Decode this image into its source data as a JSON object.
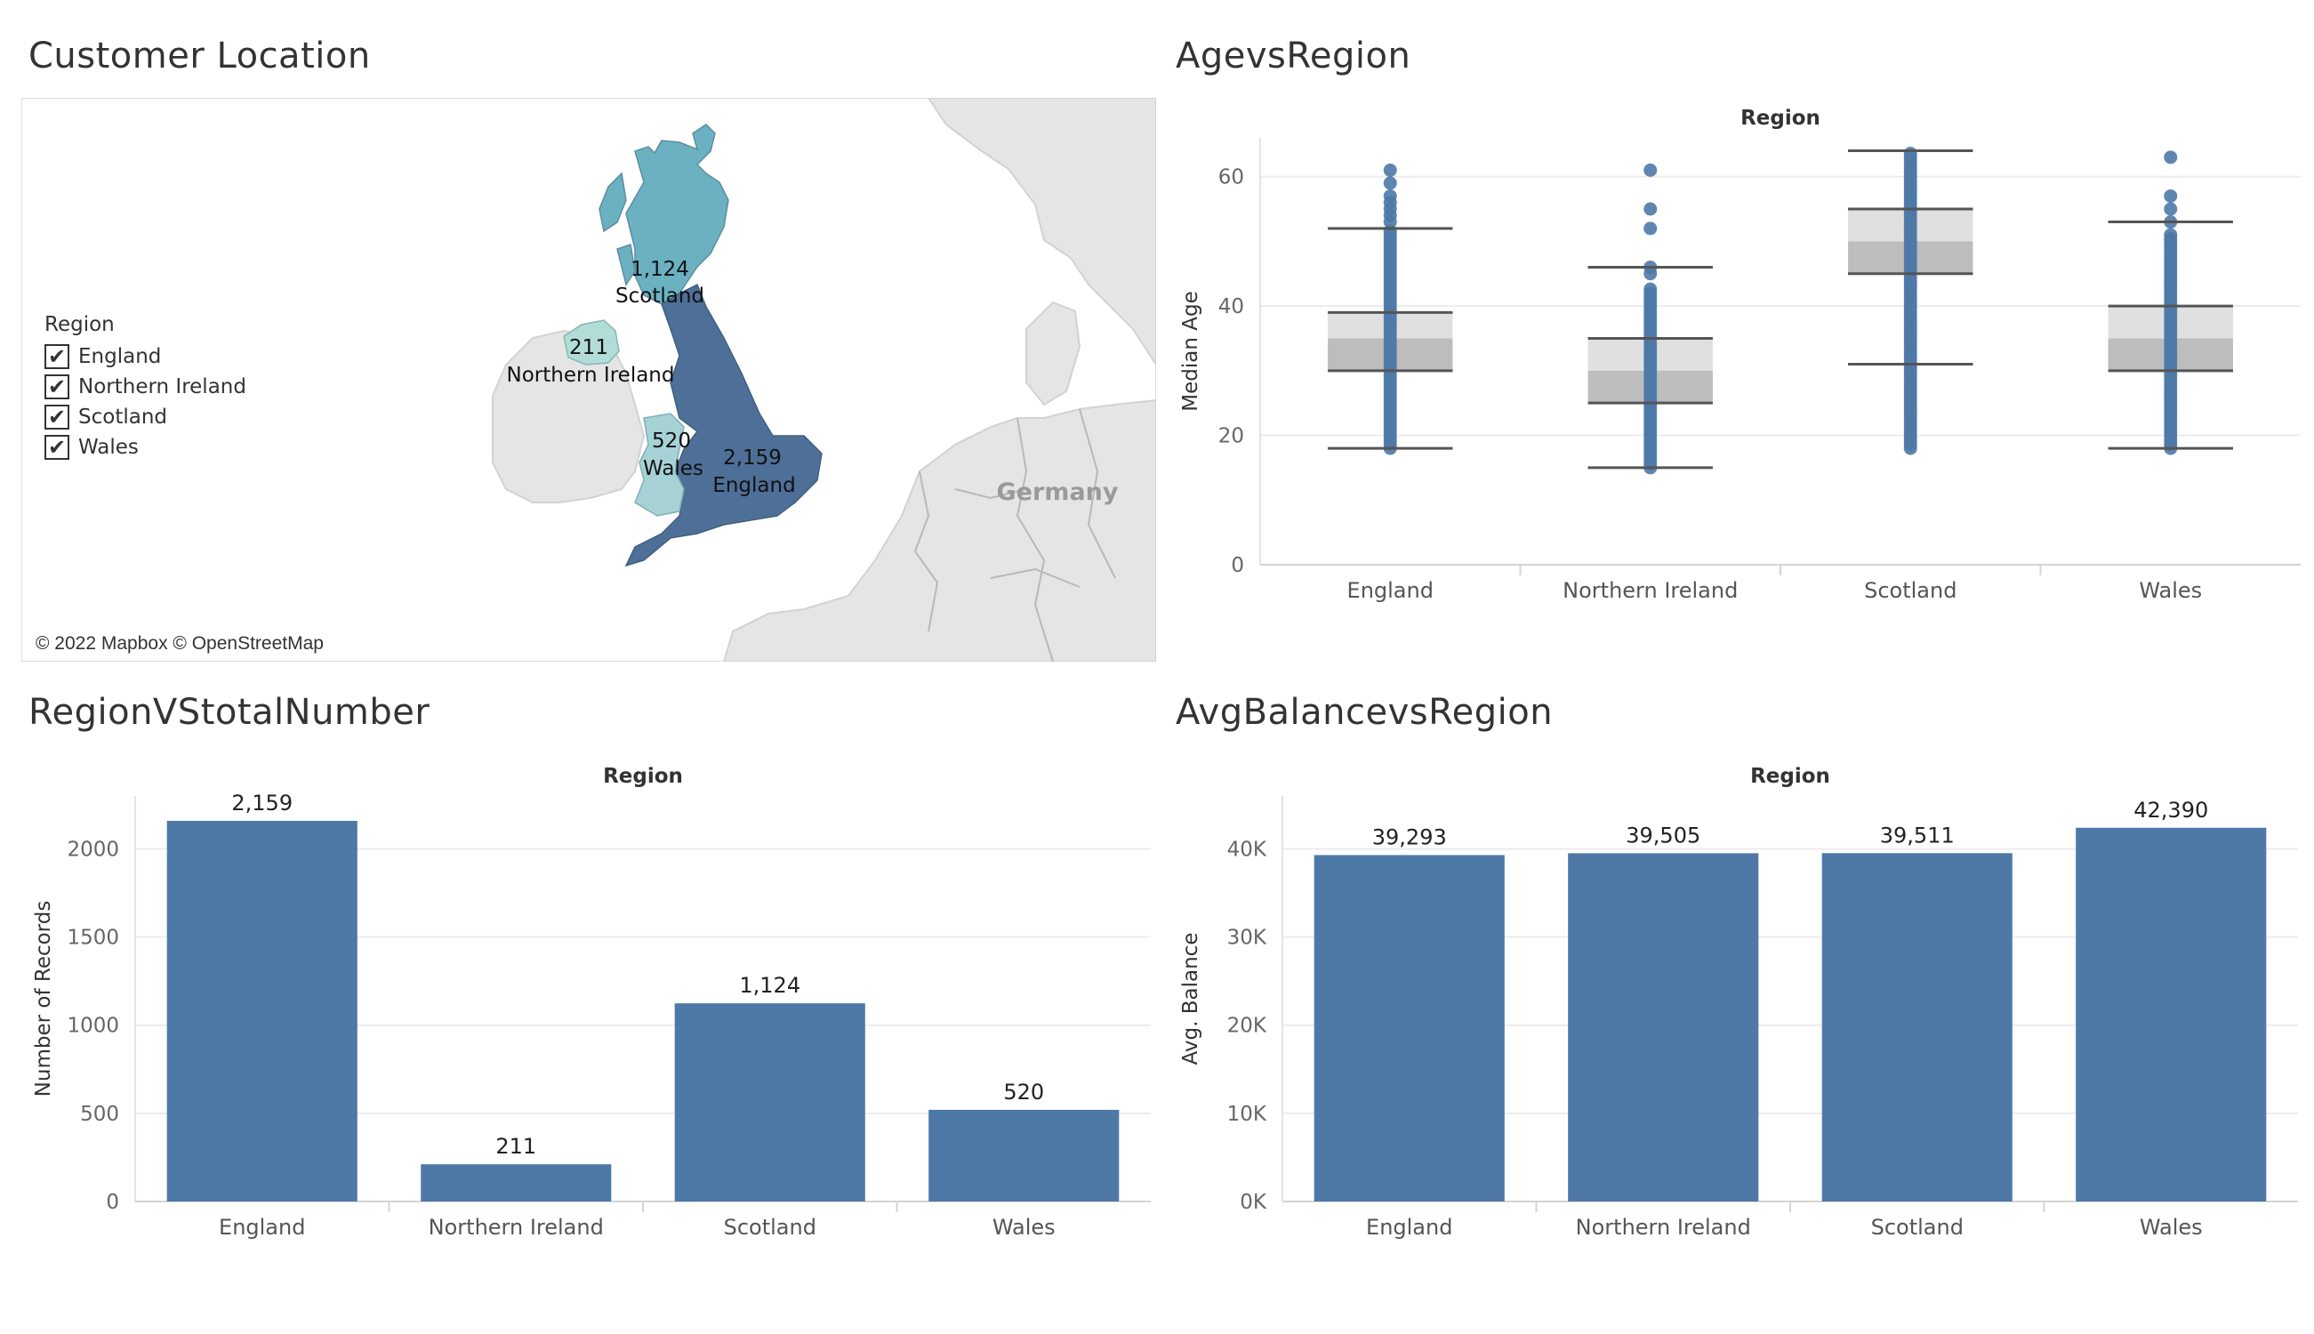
{
  "panels": {
    "map": {
      "title": "Customer Location"
    },
    "age": {
      "title": "AgevsRegion"
    },
    "count": {
      "title": "RegionVStotalNumber"
    },
    "balance": {
      "title": "AvgBalancevsRegion"
    }
  },
  "map": {
    "legend_title": "Region",
    "legend_items": [
      "England",
      "Northern Ireland",
      "Scotland",
      "Wales"
    ],
    "checked_mark": "✔",
    "country_label": "Germany",
    "credit": "© 2022 Mapbox © OpenStreetMap",
    "regions": [
      {
        "name": "England",
        "count": "2,159",
        "color": "#4e6f97"
      },
      {
        "name": "Northern Ireland",
        "count": "211",
        "color": "#b2dcd8"
      },
      {
        "name": "Scotland",
        "count": "1,124",
        "color": "#6bb1c2"
      },
      {
        "name": "Wales",
        "count": "520",
        "color": "#a6d2d6"
      }
    ]
  },
  "chart_data": [
    {
      "id": "age",
      "type": "box",
      "header": "Region",
      "ylabel": "Median Age",
      "ylim": [
        0,
        66
      ],
      "yticks": [
        0,
        20,
        40,
        60
      ],
      "categories": [
        "England",
        "Northern Ireland",
        "Scotland",
        "Wales"
      ],
      "boxes": [
        {
          "whisker_low": 18,
          "q1": 30,
          "median": 35,
          "q3": 39,
          "whisker_high": 52,
          "points_range": [
            18,
            52
          ],
          "outliers": [
            53,
            54,
            55,
            56,
            57,
            59,
            61
          ]
        },
        {
          "whisker_low": 15,
          "q1": 25,
          "median": 30,
          "q3": 35,
          "whisker_high": 46,
          "points_range": [
            15,
            43
          ],
          "outliers": [
            45,
            46,
            52,
            55,
            61
          ]
        },
        {
          "whisker_low": 31,
          "q1": 45,
          "median": 50,
          "q3": 55,
          "whisker_high": 64,
          "points_range": [
            18,
            64
          ],
          "outliers": []
        },
        {
          "whisker_low": 18,
          "q1": 30,
          "median": 35,
          "q3": 40,
          "whisker_high": 53,
          "points_range": [
            18,
            51
          ],
          "outliers": [
            53,
            55,
            57,
            63
          ]
        }
      ],
      "point_color": "#4e79a7"
    },
    {
      "id": "count",
      "type": "bar",
      "header": "Region",
      "ylabel": "Number of Records",
      "ylim": [
        0,
        2300
      ],
      "yticks": [
        0,
        500,
        1000,
        1500,
        2000
      ],
      "ytick_labels": [
        "0",
        "500",
        "1000",
        "1500",
        "2000"
      ],
      "categories": [
        "England",
        "Northern Ireland",
        "Scotland",
        "Wales"
      ],
      "values": [
        2159,
        211,
        1124,
        520
      ],
      "data_labels": [
        "2,159",
        "211",
        "1,124",
        "520"
      ],
      "color": "#4e79a7"
    },
    {
      "id": "balance",
      "type": "bar",
      "header": "Region",
      "ylabel": "Avg. Balance",
      "ylim": [
        0,
        46000
      ],
      "yticks": [
        0,
        10000,
        20000,
        30000,
        40000
      ],
      "ytick_labels": [
        "0K",
        "10K",
        "20K",
        "30K",
        "40K"
      ],
      "categories": [
        "England",
        "Northern Ireland",
        "Scotland",
        "Wales"
      ],
      "values": [
        39293,
        39505,
        39511,
        42390
      ],
      "data_labels": [
        "39,293",
        "39,505",
        "39,511",
        "42,390"
      ],
      "color": "#4e79a7"
    }
  ]
}
